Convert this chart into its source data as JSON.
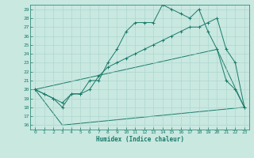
{
  "xlabel": "Humidex (Indice chaleur)",
  "background_color": "#c8e8e0",
  "line_color": "#1a7a6a",
  "grid_color": "#a8d4cc",
  "xlim": [
    -0.5,
    23.5
  ],
  "ylim": [
    15.5,
    29.5
  ],
  "yticks": [
    16,
    17,
    18,
    19,
    20,
    21,
    22,
    23,
    24,
    25,
    26,
    27,
    28,
    29
  ],
  "xticks": [
    0,
    1,
    2,
    3,
    4,
    5,
    6,
    7,
    8,
    9,
    10,
    11,
    12,
    13,
    14,
    15,
    16,
    17,
    18,
    19,
    20,
    21,
    22,
    23
  ],
  "series": {
    "line1": {
      "x": [
        0,
        1,
        2,
        3,
        4,
        5,
        6,
        7,
        8,
        9,
        10,
        11,
        12,
        13,
        14,
        15,
        16,
        17,
        18,
        19,
        20,
        21,
        22,
        23
      ],
      "y": [
        20.0,
        19.5,
        19.0,
        18.0,
        19.5,
        19.5,
        21.0,
        21.0,
        23.0,
        24.5,
        26.5,
        27.5,
        27.5,
        27.5,
        29.5,
        29.0,
        28.5,
        28.0,
        29.0,
        26.5,
        24.5,
        21.0,
        20.0,
        18.0
      ]
    },
    "line2": {
      "x": [
        0,
        1,
        2,
        3,
        4,
        5,
        6,
        7,
        8,
        9,
        10,
        11,
        12,
        13,
        14,
        15,
        16,
        17,
        18,
        19,
        20,
        21,
        22,
        23
      ],
      "y": [
        20.0,
        19.5,
        19.0,
        18.5,
        19.5,
        19.5,
        20.0,
        21.5,
        22.5,
        23.0,
        23.5,
        24.0,
        24.5,
        25.0,
        25.5,
        26.0,
        26.5,
        27.0,
        27.0,
        27.5,
        28.0,
        24.5,
        23.0,
        18.0
      ]
    },
    "line3": {
      "x": [
        0,
        3,
        23
      ],
      "y": [
        20.0,
        16.0,
        18.0
      ]
    },
    "line4": {
      "x": [
        0,
        20,
        23
      ],
      "y": [
        20.0,
        24.5,
        18.0
      ]
    }
  }
}
